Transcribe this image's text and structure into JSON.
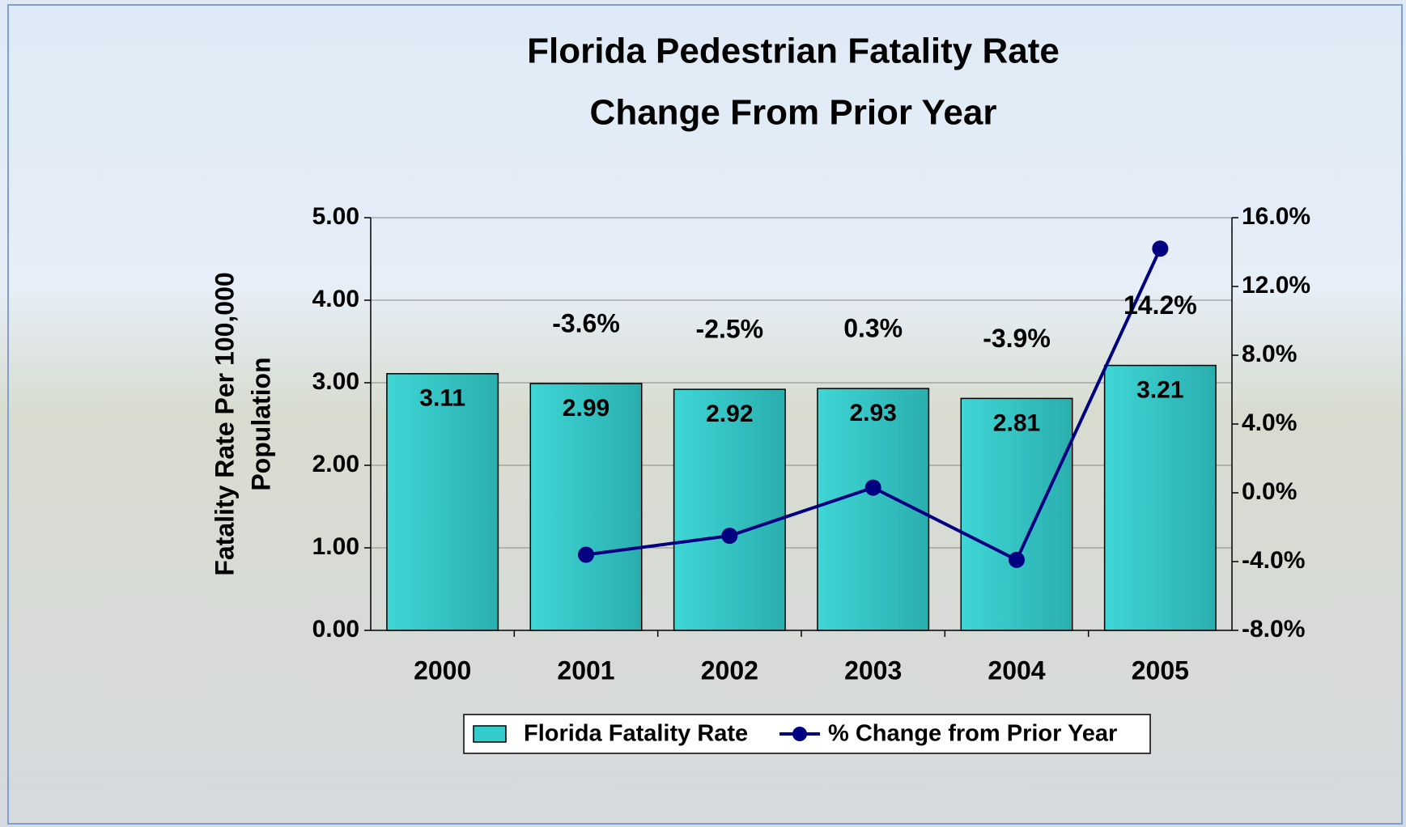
{
  "chart_data": {
    "type": "bar",
    "title": [
      "Florida Pedestrian Fatality Rate",
      "Change From Prior Year"
    ],
    "y_label": [
      "Fatality Rate Per 100,000",
      "Population"
    ],
    "categories": [
      "2000",
      "2001",
      "2002",
      "2003",
      "2004",
      "2005"
    ],
    "series": [
      {
        "name": "Florida Fatality Rate",
        "type": "bar",
        "color": "#33cccc",
        "values": [
          3.11,
          2.99,
          2.92,
          2.93,
          2.81,
          3.21
        ]
      },
      {
        "name": "% Change from Prior Year",
        "type": "line",
        "axis": "y2",
        "color": "#000080",
        "values": [
          null,
          -3.6,
          -2.5,
          0.3,
          -3.9,
          14.2
        ],
        "value_labels": [
          null,
          "-3.6%",
          "-2.5%",
          "0.3%",
          "-3.9%",
          "14.2%"
        ]
      }
    ],
    "ylim": [
      0,
      5
    ],
    "yticks": [
      {
        "value": 0,
        "label": "0.00"
      },
      {
        "value": 1,
        "label": "1.00"
      },
      {
        "value": 2,
        "label": "2.00"
      },
      {
        "value": 3,
        "label": "3.00"
      },
      {
        "value": 4,
        "label": "4.00"
      },
      {
        "value": 5,
        "label": "5.00"
      }
    ],
    "y2lim": [
      -8,
      16
    ],
    "y2ticks": [
      {
        "value": -8,
        "label": "-8.0%"
      },
      {
        "value": -4,
        "label": "-4.0%"
      },
      {
        "value": 0,
        "label": "0.0%"
      },
      {
        "value": 4,
        "label": "4.0%"
      },
      {
        "value": 8,
        "label": "8.0%"
      },
      {
        "value": 12,
        "label": "12.0%"
      },
      {
        "value": 16,
        "label": "16.0%"
      }
    ],
    "grid": true,
    "legend": "bottom"
  }
}
